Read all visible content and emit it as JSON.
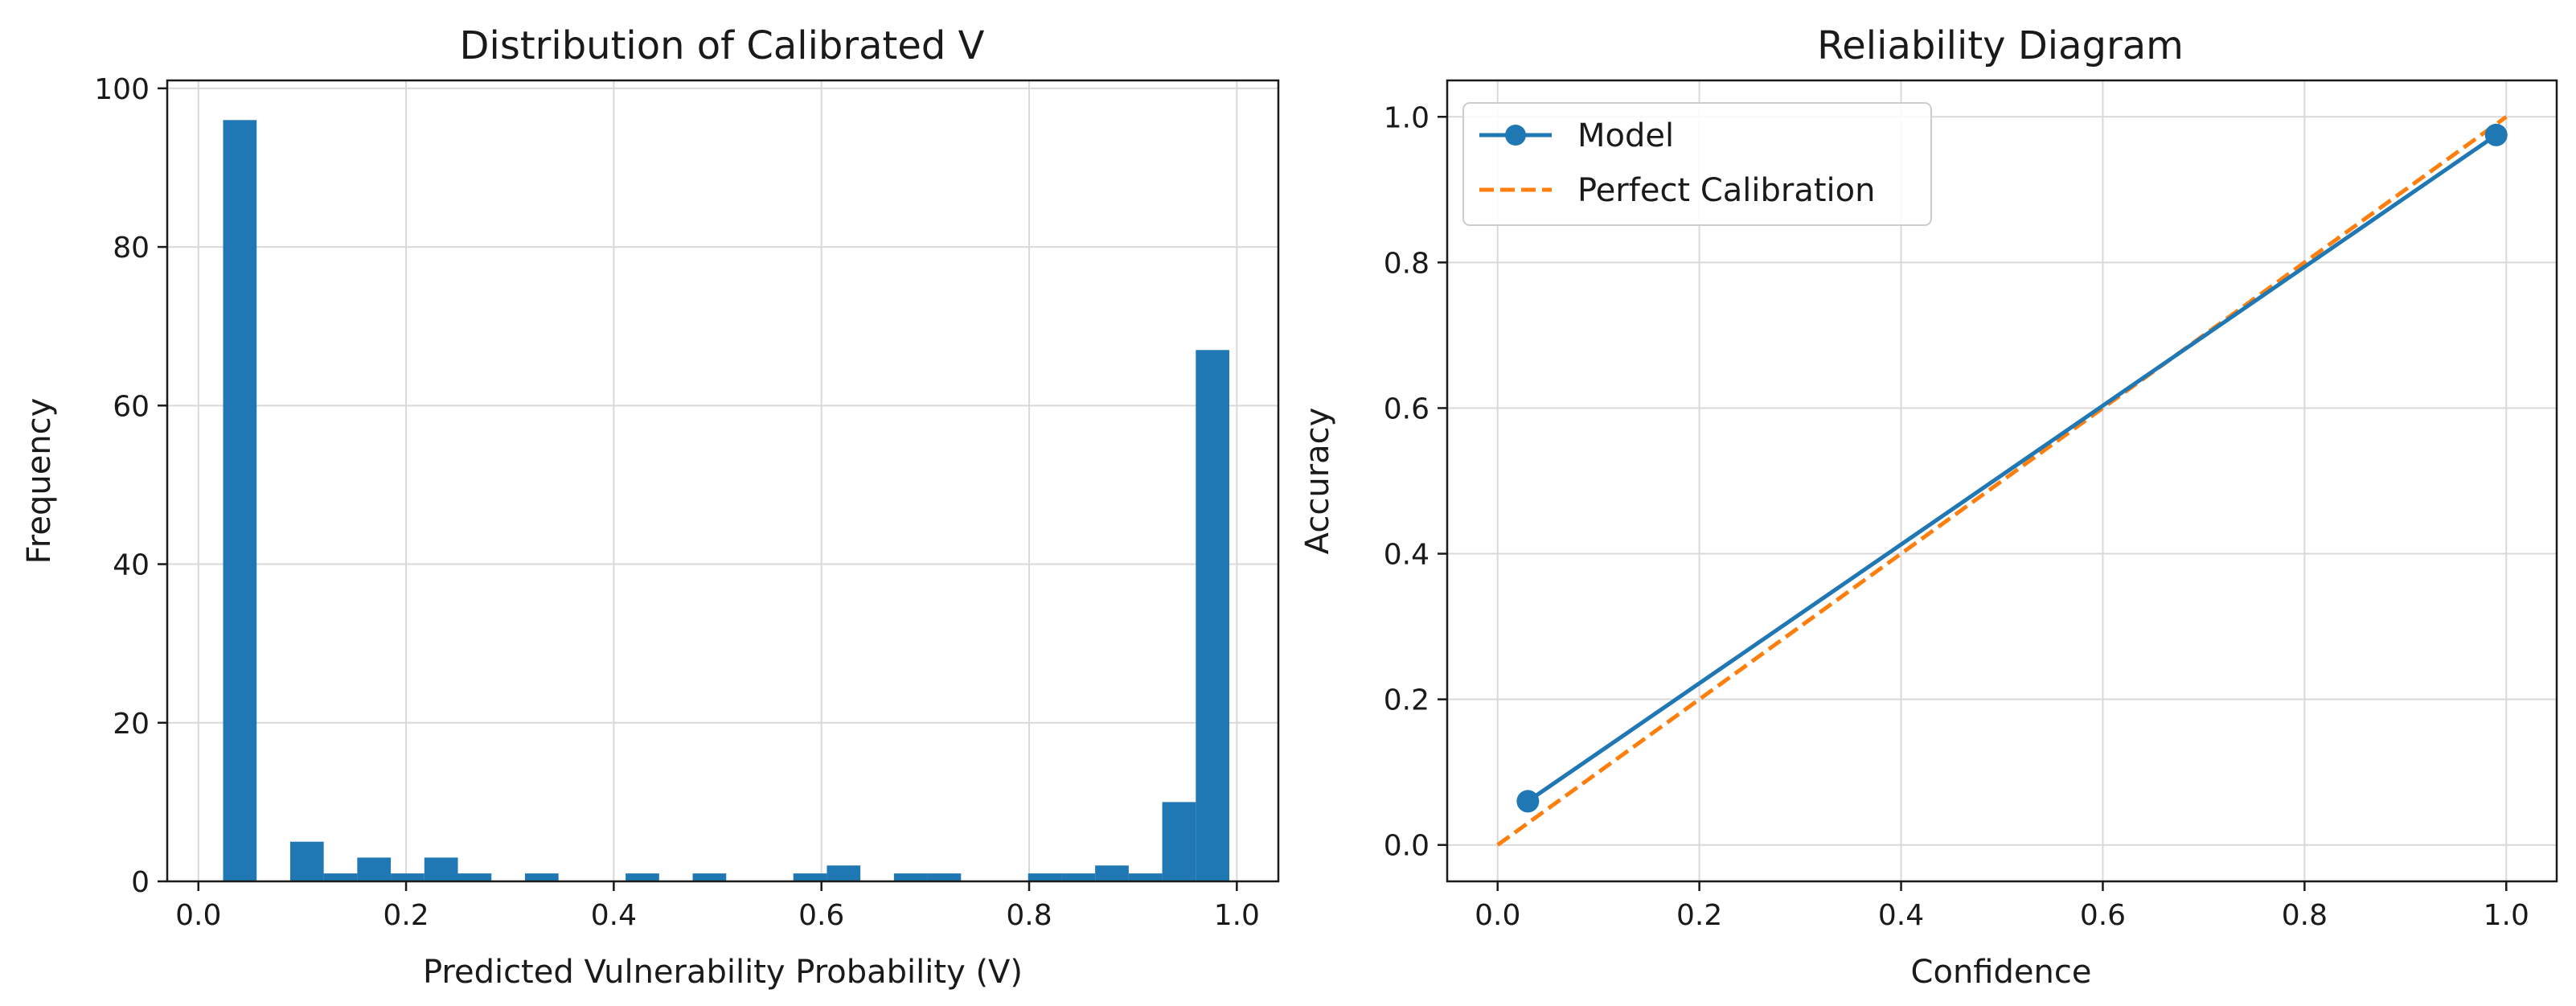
{
  "chart_data": [
    {
      "type": "bar",
      "title": "Distribution of Calibrated V",
      "xlabel": "Predicted Vulnerability Probability (V)",
      "ylabel": "Frequency",
      "xlim": [
        -0.03,
        1.04
      ],
      "ylim": [
        0,
        101
      ],
      "xticks": [
        0.0,
        0.2,
        0.4,
        0.6,
        0.8,
        1.0
      ],
      "xtick_labels": [
        "0.0",
        "0.2",
        "0.4",
        "0.6",
        "0.8",
        "1.0"
      ],
      "yticks": [
        0,
        20,
        40,
        60,
        80,
        100
      ],
      "ytick_labels": [
        "0",
        "20",
        "40",
        "60",
        "80",
        "100"
      ],
      "grid": true,
      "color": "#1f77b4",
      "bins": {
        "start": 0.0238,
        "width": 0.0323,
        "counts": [
          96,
          0,
          5,
          1,
          3,
          1,
          3,
          1,
          0,
          1,
          0,
          0,
          1,
          0,
          1,
          0,
          0,
          1,
          2,
          0,
          1,
          1,
          0,
          0,
          1,
          1,
          2,
          1,
          10,
          67
        ]
      }
    },
    {
      "type": "line",
      "title": "Reliability Diagram",
      "xlabel": "Confidence",
      "ylabel": "Accuracy",
      "xlim": [
        -0.05,
        1.05
      ],
      "ylim": [
        -0.05,
        1.05
      ],
      "xticks": [
        0.0,
        0.2,
        0.4,
        0.6,
        0.8,
        1.0
      ],
      "xtick_labels": [
        "0.0",
        "0.2",
        "0.4",
        "0.6",
        "0.8",
        "1.0"
      ],
      "yticks": [
        0.0,
        0.2,
        0.4,
        0.6,
        0.8,
        1.0
      ],
      "ytick_labels": [
        "0.0",
        "0.2",
        "0.4",
        "0.6",
        "0.8",
        "1.0"
      ],
      "grid": true,
      "legend_position": "upper-left",
      "series": [
        {
          "name": "Model",
          "style": "solid-with-markers",
          "color": "#1f77b4",
          "x": [
            0.03,
            0.99
          ],
          "y": [
            0.06,
            0.975
          ]
        },
        {
          "name": "Perfect Calibration",
          "style": "dashed",
          "color": "#ff7f0e",
          "x": [
            0.0,
            1.0
          ],
          "y": [
            0.0,
            1.0
          ]
        }
      ]
    }
  ]
}
